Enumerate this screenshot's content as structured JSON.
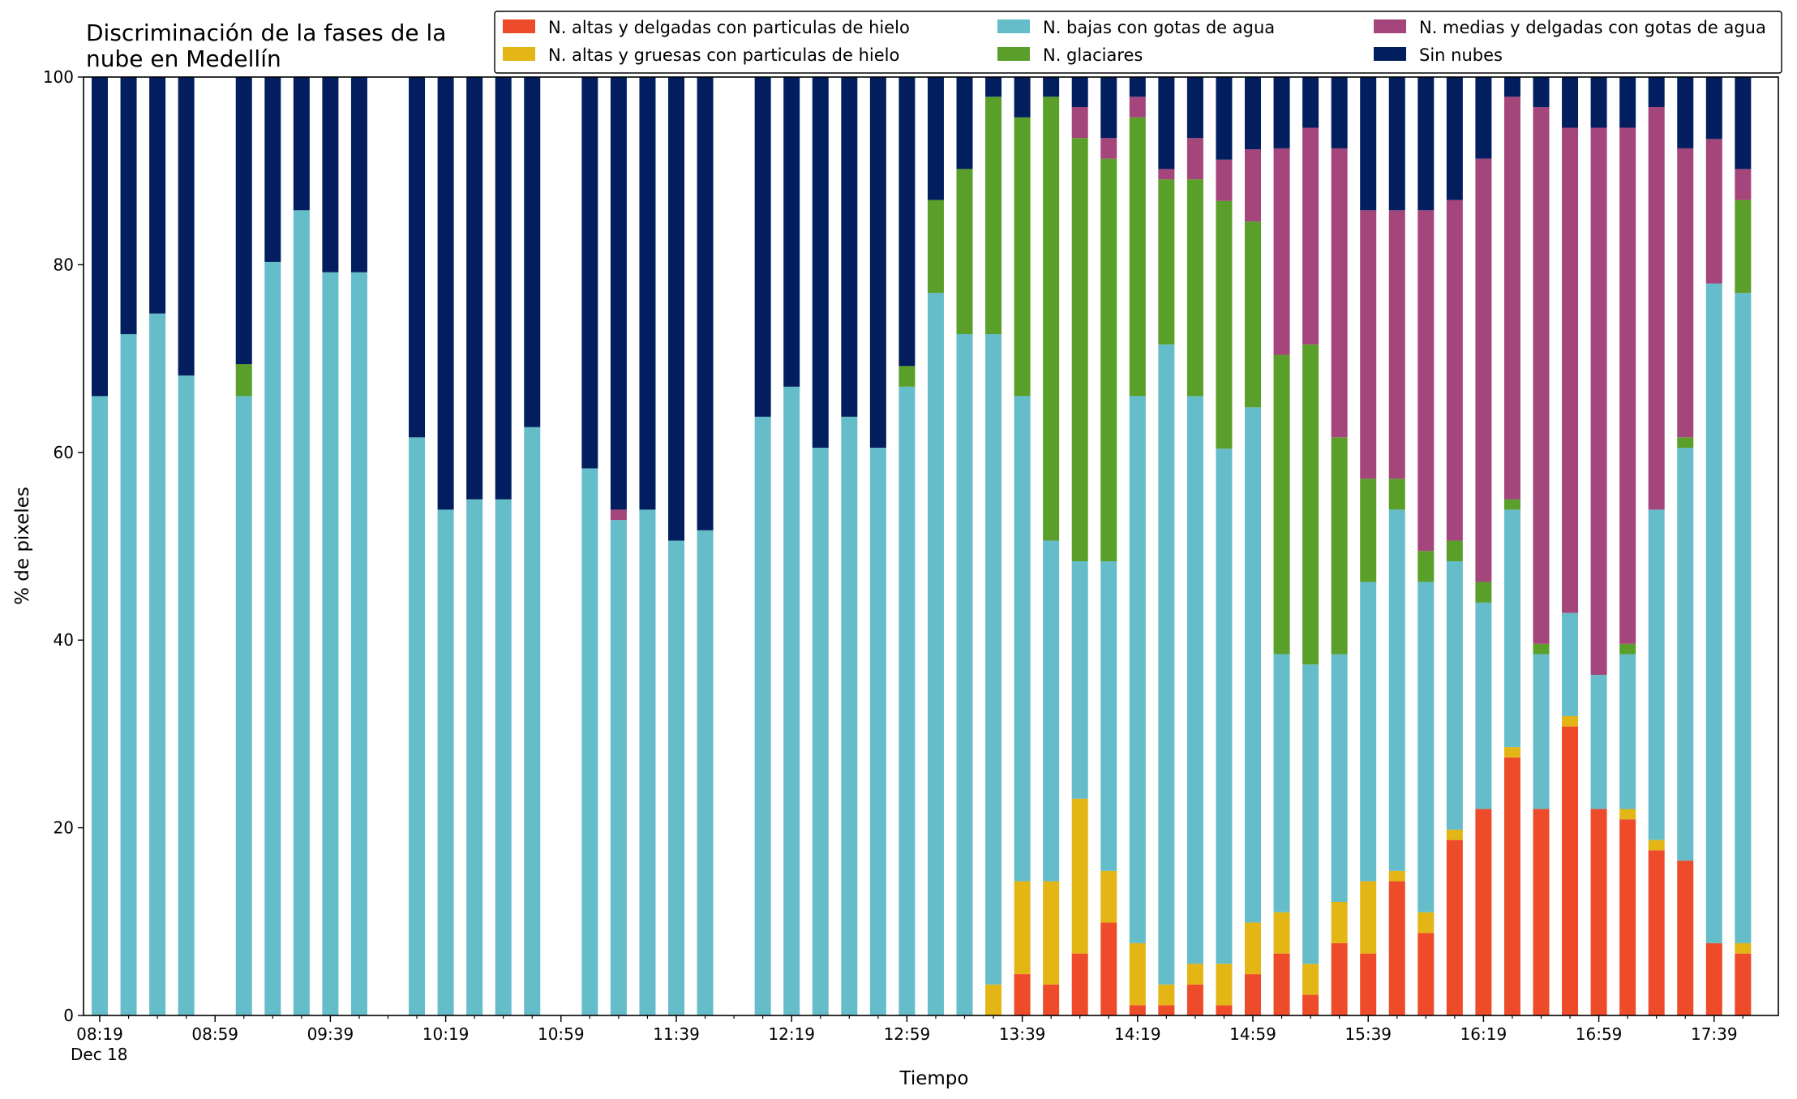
{
  "chart_data": {
    "type": "bar",
    "stacked": true,
    "title_lines": [
      "Discriminación de la fases de la",
      "nube en Medellín"
    ],
    "xlabel": "Tiempo",
    "ylabel": "% de pixeles",
    "ylim": [
      0,
      100
    ],
    "y_ticks": [
      "0",
      "20",
      "40",
      "60",
      "80",
      "100"
    ],
    "x_tick_labels": [
      "08:19",
      "08:59",
      "09:39",
      "10:19",
      "10:59",
      "11:39",
      "12:19",
      "12:59",
      "13:39",
      "14:19",
      "14:59",
      "15:39",
      "16:19",
      "16:59",
      "17:39"
    ],
    "x_date_label": "Dec 18",
    "grid": false,
    "legend_position": "top-right",
    "series_colors": {
      "ice_thin": "#ee4b2b",
      "ice_thick": "#e3b515",
      "water_low": "#66bdca",
      "glaciated": "#5a9f2a",
      "water_mid": "#a4457c",
      "clear": "#031e5e"
    },
    "legend": [
      {
        "key": "ice_thin",
        "label": "N. altas y delgadas con particulas de hielo"
      },
      {
        "key": "ice_thick",
        "label": "N. altas y gruesas con particulas de hielo"
      },
      {
        "key": "water_low",
        "label": "N. bajas con gotas de agua"
      },
      {
        "key": "glaciated",
        "label": "N. glaciares"
      },
      {
        "key": "water_mid",
        "label": "N. medias y delgadas con gotas de agua"
      },
      {
        "key": "clear",
        "label": "Sin nubes"
      }
    ],
    "series_order": [
      "ice_thin",
      "ice_thick",
      "water_low",
      "glaciated",
      "water_mid",
      "clear"
    ],
    "bars": [
      {
        "time": "08:19",
        "ice_thin": 0,
        "ice_thick": 0,
        "water_low": 66,
        "glaciated": 0,
        "water_mid": 0,
        "clear": 34
      },
      {
        "time": "08:29",
        "ice_thin": 0,
        "ice_thick": 0,
        "water_low": 72.6,
        "glaciated": 0,
        "water_mid": 0,
        "clear": 27.4
      },
      {
        "time": "08:39",
        "ice_thin": 0,
        "ice_thick": 0,
        "water_low": 74.8,
        "glaciated": 0,
        "water_mid": 0,
        "clear": 25.2
      },
      {
        "time": "08:49",
        "ice_thin": 0,
        "ice_thick": 0,
        "water_low": 68.2,
        "glaciated": 0,
        "water_mid": 0,
        "clear": 31.8
      },
      {
        "time": "09:09",
        "ice_thin": 0,
        "ice_thick": 0,
        "water_low": 66,
        "glaciated": 3.4,
        "water_mid": 0,
        "clear": 30.6
      },
      {
        "time": "09:19",
        "ice_thin": 0,
        "ice_thick": 0,
        "water_low": 80.3,
        "glaciated": 0,
        "water_mid": 0,
        "clear": 19.7
      },
      {
        "time": "09:29",
        "ice_thin": 0,
        "ice_thick": 0,
        "water_low": 85.8,
        "glaciated": 0,
        "water_mid": 0,
        "clear": 14.2
      },
      {
        "time": "09:39",
        "ice_thin": 0,
        "ice_thick": 0,
        "water_low": 79.2,
        "glaciated": 0,
        "water_mid": 0,
        "clear": 20.8
      },
      {
        "time": "09:49",
        "ice_thin": 0,
        "ice_thick": 0,
        "water_low": 79.2,
        "glaciated": 0,
        "water_mid": 0,
        "clear": 20.8
      },
      {
        "time": "10:09",
        "ice_thin": 0,
        "ice_thick": 0,
        "water_low": 61.6,
        "glaciated": 0,
        "water_mid": 0,
        "clear": 38.4
      },
      {
        "time": "10:19",
        "ice_thin": 0,
        "ice_thick": 0,
        "water_low": 53.9,
        "glaciated": 0,
        "water_mid": 0,
        "clear": 46.1
      },
      {
        "time": "10:29",
        "ice_thin": 0,
        "ice_thick": 0,
        "water_low": 55,
        "glaciated": 0,
        "water_mid": 0,
        "clear": 45
      },
      {
        "time": "10:39",
        "ice_thin": 0,
        "ice_thick": 0,
        "water_low": 55,
        "glaciated": 0,
        "water_mid": 0,
        "clear": 45
      },
      {
        "time": "10:49",
        "ice_thin": 0,
        "ice_thick": 0,
        "water_low": 62.7,
        "glaciated": 0,
        "water_mid": 0,
        "clear": 37.3
      },
      {
        "time": "11:09",
        "ice_thin": 0,
        "ice_thick": 0,
        "water_low": 58.3,
        "glaciated": 0,
        "water_mid": 0,
        "clear": 41.7
      },
      {
        "time": "11:19",
        "ice_thin": 0,
        "ice_thick": 0,
        "water_low": 52.8,
        "glaciated": 0,
        "water_mid": 1.1,
        "clear": 46.1
      },
      {
        "time": "11:29",
        "ice_thin": 0,
        "ice_thick": 0,
        "water_low": 53.9,
        "glaciated": 0,
        "water_mid": 0,
        "clear": 46.1
      },
      {
        "time": "11:39",
        "ice_thin": 0,
        "ice_thick": 0,
        "water_low": 50.6,
        "glaciated": 0,
        "water_mid": 0,
        "clear": 49.4
      },
      {
        "time": "11:49",
        "ice_thin": 0,
        "ice_thick": 0,
        "water_low": 51.7,
        "glaciated": 0,
        "water_mid": 0,
        "clear": 48.3
      },
      {
        "time": "12:09",
        "ice_thin": 0,
        "ice_thick": 0,
        "water_low": 63.8,
        "glaciated": 0,
        "water_mid": 0,
        "clear": 36.2
      },
      {
        "time": "12:19",
        "ice_thin": 0,
        "ice_thick": 0,
        "water_low": 67,
        "glaciated": 0,
        "water_mid": 0,
        "clear": 33
      },
      {
        "time": "12:29",
        "ice_thin": 0,
        "ice_thick": 0,
        "water_low": 60.5,
        "glaciated": 0,
        "water_mid": 0,
        "clear": 39.5
      },
      {
        "time": "12:39",
        "ice_thin": 0,
        "ice_thick": 0,
        "water_low": 63.8,
        "glaciated": 0,
        "water_mid": 0,
        "clear": 36.2
      },
      {
        "time": "12:49",
        "ice_thin": 0,
        "ice_thick": 0,
        "water_low": 60.5,
        "glaciated": 0,
        "water_mid": 0,
        "clear": 39.5
      },
      {
        "time": "12:59",
        "ice_thin": 0,
        "ice_thick": 0,
        "water_low": 67,
        "glaciated": 2.2,
        "water_mid": 0,
        "clear": 30.8
      },
      {
        "time": "13:09",
        "ice_thin": 0,
        "ice_thick": 0,
        "water_low": 77,
        "glaciated": 9.9,
        "water_mid": 0,
        "clear": 13.1
      },
      {
        "time": "13:19",
        "ice_thin": 0,
        "ice_thick": 0,
        "water_low": 72.6,
        "glaciated": 17.6,
        "water_mid": 0,
        "clear": 9.8
      },
      {
        "time": "13:29",
        "ice_thin": 0,
        "ice_thick": 3.3,
        "water_low": 69.3,
        "glaciated": 25.3,
        "water_mid": 0,
        "clear": 2.1
      },
      {
        "time": "13:39",
        "ice_thin": 4.4,
        "ice_thick": 9.9,
        "water_low": 51.7,
        "glaciated": 29.7,
        "water_mid": 0,
        "clear": 4.3
      },
      {
        "time": "13:49",
        "ice_thin": 3.3,
        "ice_thick": 11,
        "water_low": 36.3,
        "glaciated": 47.3,
        "water_mid": 0,
        "clear": 2.1
      },
      {
        "time": "13:59",
        "ice_thin": 6.6,
        "ice_thick": 16.5,
        "water_low": 25.3,
        "glaciated": 45.1,
        "water_mid": 3.3,
        "clear": 3.2
      },
      {
        "time": "14:09",
        "ice_thin": 9.9,
        "ice_thick": 5.5,
        "water_low": 33,
        "glaciated": 42.9,
        "water_mid": 2.2,
        "clear": 6.5
      },
      {
        "time": "14:19",
        "ice_thin": 1.1,
        "ice_thick": 6.6,
        "water_low": 58.3,
        "glaciated": 29.7,
        "water_mid": 2.2,
        "clear": 2.1
      },
      {
        "time": "14:29",
        "ice_thin": 1.1,
        "ice_thick": 2.2,
        "water_low": 68.2,
        "glaciated": 17.6,
        "water_mid": 1.1,
        "clear": 9.8
      },
      {
        "time": "14:39",
        "ice_thin": 3.3,
        "ice_thick": 2.2,
        "water_low": 60.5,
        "glaciated": 23.1,
        "water_mid": 4.4,
        "clear": 6.5
      },
      {
        "time": "14:49",
        "ice_thin": 1.1,
        "ice_thick": 4.4,
        "water_low": 54.9,
        "glaciated": 26.4,
        "water_mid": 4.4,
        "clear": 8.8
      },
      {
        "time": "14:59",
        "ice_thin": 4.4,
        "ice_thick": 5.5,
        "water_low": 54.9,
        "glaciated": 19.8,
        "water_mid": 7.7,
        "clear": 7.7
      },
      {
        "time": "15:09",
        "ice_thin": 6.6,
        "ice_thick": 4.4,
        "water_low": 27.5,
        "glaciated": 31.9,
        "water_mid": 22,
        "clear": 7.6
      },
      {
        "time": "15:19",
        "ice_thin": 2.2,
        "ice_thick": 3.3,
        "water_low": 31.9,
        "glaciated": 34.1,
        "water_mid": 23.1,
        "clear": 5.4
      },
      {
        "time": "15:29",
        "ice_thin": 7.7,
        "ice_thick": 4.4,
        "water_low": 26.4,
        "glaciated": 23.1,
        "water_mid": 30.8,
        "clear": 7.6
      },
      {
        "time": "15:39",
        "ice_thin": 6.6,
        "ice_thick": 7.7,
        "water_low": 31.9,
        "glaciated": 11,
        "water_mid": 28.6,
        "clear": 14.2
      },
      {
        "time": "15:49",
        "ice_thin": 14.3,
        "ice_thick": 1.1,
        "water_low": 38.5,
        "glaciated": 3.3,
        "water_mid": 28.6,
        "clear": 14.2
      },
      {
        "time": "15:59",
        "ice_thin": 8.8,
        "ice_thick": 2.2,
        "water_low": 35.2,
        "glaciated": 3.3,
        "water_mid": 36.3,
        "clear": 14.2
      },
      {
        "time": "16:09",
        "ice_thin": 18.7,
        "ice_thick": 1.1,
        "water_low": 28.6,
        "glaciated": 2.2,
        "water_mid": 36.3,
        "clear": 13.1
      },
      {
        "time": "16:19",
        "ice_thin": 22,
        "ice_thick": 0,
        "water_low": 22,
        "glaciated": 2.2,
        "water_mid": 45.1,
        "clear": 8.7
      },
      {
        "time": "16:29",
        "ice_thin": 27.5,
        "ice_thick": 1.1,
        "water_low": 25.3,
        "glaciated": 1.1,
        "water_mid": 42.9,
        "clear": 2.1
      },
      {
        "time": "16:39",
        "ice_thin": 22,
        "ice_thick": 0,
        "water_low": 16.5,
        "glaciated": 1.1,
        "water_mid": 57.2,
        "clear": 3.2
      },
      {
        "time": "16:49",
        "ice_thin": 30.8,
        "ice_thick": 1.1,
        "water_low": 11,
        "glaciated": 0,
        "water_mid": 51.7,
        "clear": 5.4
      },
      {
        "time": "16:59",
        "ice_thin": 22,
        "ice_thick": 0,
        "water_low": 14.3,
        "glaciated": 0,
        "water_mid": 58.3,
        "clear": 5.4
      },
      {
        "time": "17:09",
        "ice_thin": 20.9,
        "ice_thick": 1.1,
        "water_low": 16.5,
        "glaciated": 1.1,
        "water_mid": 55,
        "clear": 5.4
      },
      {
        "time": "17:19",
        "ice_thin": 17.6,
        "ice_thick": 1.1,
        "water_low": 35.2,
        "glaciated": 0,
        "water_mid": 42.9,
        "clear": 3.2
      },
      {
        "time": "17:29",
        "ice_thin": 16.5,
        "ice_thick": 0,
        "water_low": 44,
        "glaciated": 1.1,
        "water_mid": 30.8,
        "clear": 7.6
      },
      {
        "time": "17:39",
        "ice_thin": 7.7,
        "ice_thick": 0,
        "water_low": 70.3,
        "glaciated": 0,
        "water_mid": 15.4,
        "clear": 6.6
      },
      {
        "time": "17:49",
        "ice_thin": 6.6,
        "ice_thick": 1.1,
        "water_low": 69.3,
        "glaciated": 9.9,
        "water_mid": 3.3,
        "clear": 9.8
      }
    ]
  }
}
